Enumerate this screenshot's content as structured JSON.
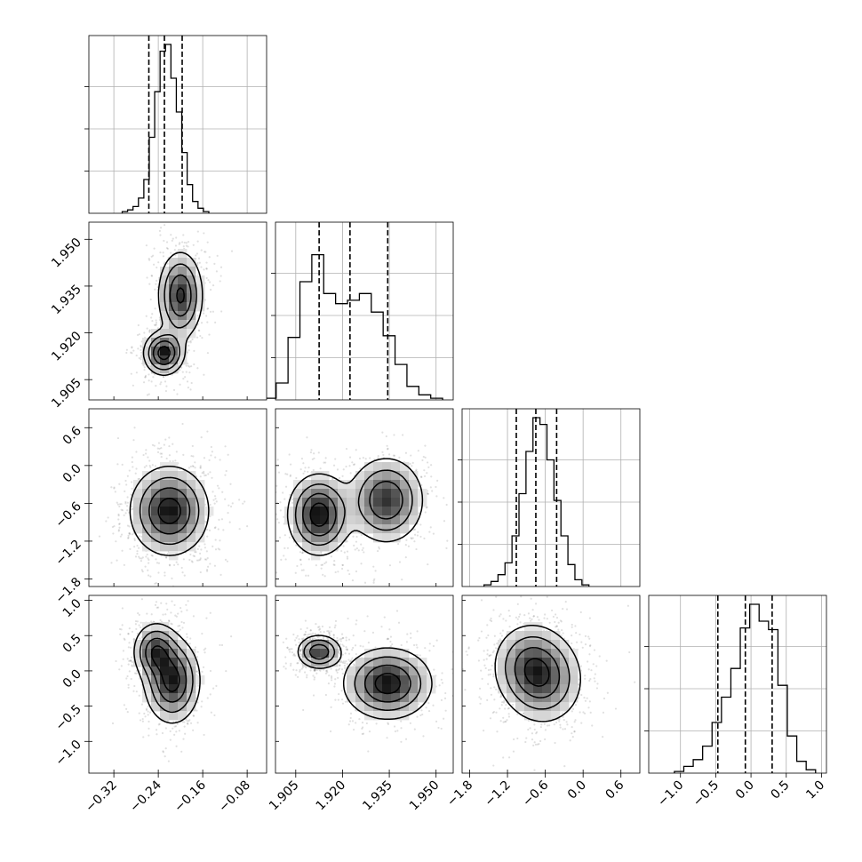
{
  "chart_data": {
    "type": "corner",
    "title": "",
    "grid": true,
    "colors": {
      "ink": "#000000",
      "grid": "#b0b0b0",
      "background": "#ffffff"
    },
    "parameters": [
      {
        "range": [
          -0.365,
          -0.045
        ],
        "ticks": [
          -0.32,
          -0.24,
          -0.16,
          -0.08
        ],
        "tick_labels": [
          "−0.32",
          "−0.24",
          "−0.16",
          "−0.08"
        ],
        "quantiles": [
          -0.257,
          -0.229,
          -0.197
        ]
      },
      {
        "range": [
          1.8985,
          1.9555
        ],
        "ticks": [
          1.905,
          1.92,
          1.935,
          1.95
        ],
        "tick_labels": [
          "1.905",
          "1.920",
          "1.935",
          "1.950"
        ],
        "quantiles": [
          1.9125,
          1.9224,
          1.9345
        ]
      },
      {
        "range": [
          -1.92,
          0.9
        ],
        "ticks": [
          -1.8,
          -1.2,
          -0.6,
          0.0,
          0.6
        ],
        "tick_labels": [
          "−1.8",
          "−1.2",
          "−0.6",
          "0.0",
          "0.6"
        ],
        "quantiles": [
          -1.06,
          -0.75,
          -0.42
        ]
      },
      {
        "range": [
          -1.45,
          1.07
        ],
        "ticks": [
          -1.0,
          -0.5,
          0.0,
          0.5,
          1.0
        ],
        "tick_labels": [
          "−1.0",
          "−0.5",
          "0.0",
          "0.5",
          "1.0"
        ],
        "quantiles": [
          -0.47,
          -0.08,
          0.3
        ]
      }
    ],
    "histograms": [
      {
        "parameter": 0,
        "values": [
          0.01,
          0.02,
          0.04,
          0.09,
          0.2,
          0.45,
          0.72,
          0.96,
          1.0,
          0.8,
          0.6,
          0.36,
          0.17,
          0.07,
          0.03,
          0.01
        ]
      },
      {
        "parameter": 1,
        "values": [
          0.01,
          0.1,
          0.37,
          0.7,
          0.86,
          0.63,
          0.57,
          0.59,
          0.63,
          0.52,
          0.38,
          0.21,
          0.08,
          0.03,
          0.01
        ]
      },
      {
        "parameter": 2,
        "values": [
          0.01,
          0.03,
          0.07,
          0.14,
          0.3,
          0.55,
          0.8,
          1.0,
          0.96,
          0.75,
          0.51,
          0.3,
          0.13,
          0.04,
          0.01
        ]
      },
      {
        "parameter": 3,
        "values": [
          0.01,
          0.04,
          0.08,
          0.16,
          0.3,
          0.45,
          0.62,
          0.86,
          1.0,
          0.9,
          0.85,
          0.52,
          0.22,
          0.07,
          0.02
        ]
      }
    ],
    "pairs": [
      {
        "x_param": 0,
        "y_param": 1,
        "modes": [
          {
            "x": -0.23,
            "y": 1.9135,
            "sx": 0.018,
            "sy": 0.0035,
            "w": 1.0
          },
          {
            "x": -0.2,
            "y": 1.932,
            "sx": 0.02,
            "sy": 0.007,
            "w": 0.9
          }
        ]
      },
      {
        "x_param": 0,
        "y_param": 2,
        "modes": [
          {
            "x": -0.22,
            "y": -0.72,
            "sx": 0.035,
            "sy": 0.35,
            "w": 1.0
          }
        ]
      },
      {
        "x_param": 1,
        "y_param": 2,
        "modes": [
          {
            "x": 1.9125,
            "y": -0.78,
            "sx": 0.005,
            "sy": 0.32,
            "w": 1.0
          },
          {
            "x": 1.934,
            "y": -0.55,
            "sx": 0.006,
            "sy": 0.34,
            "w": 0.85
          }
        ]
      },
      {
        "x_param": 0,
        "y_param": 3,
        "modes": [
          {
            "x": -0.245,
            "y": 0.28,
            "sx": 0.02,
            "sy": 0.2,
            "w": 0.8
          },
          {
            "x": -0.215,
            "y": -0.14,
            "sx": 0.025,
            "sy": 0.3,
            "w": 1.0
          }
        ]
      },
      {
        "x_param": 1,
        "y_param": 3,
        "modes": [
          {
            "x": 1.9125,
            "y": 0.27,
            "sx": 0.0035,
            "sy": 0.12,
            "w": 1.0
          },
          {
            "x": 1.9345,
            "y": -0.18,
            "sx": 0.007,
            "sy": 0.25,
            "w": 1.2
          }
        ]
      },
      {
        "x_param": 2,
        "y_param": 3,
        "modes": [
          {
            "x": -0.85,
            "y": 0.1,
            "sx": 0.3,
            "sy": 0.3,
            "w": 0.9
          },
          {
            "x": -0.62,
            "y": -0.14,
            "sx": 0.32,
            "sy": 0.32,
            "w": 1.0
          }
        ]
      }
    ]
  }
}
